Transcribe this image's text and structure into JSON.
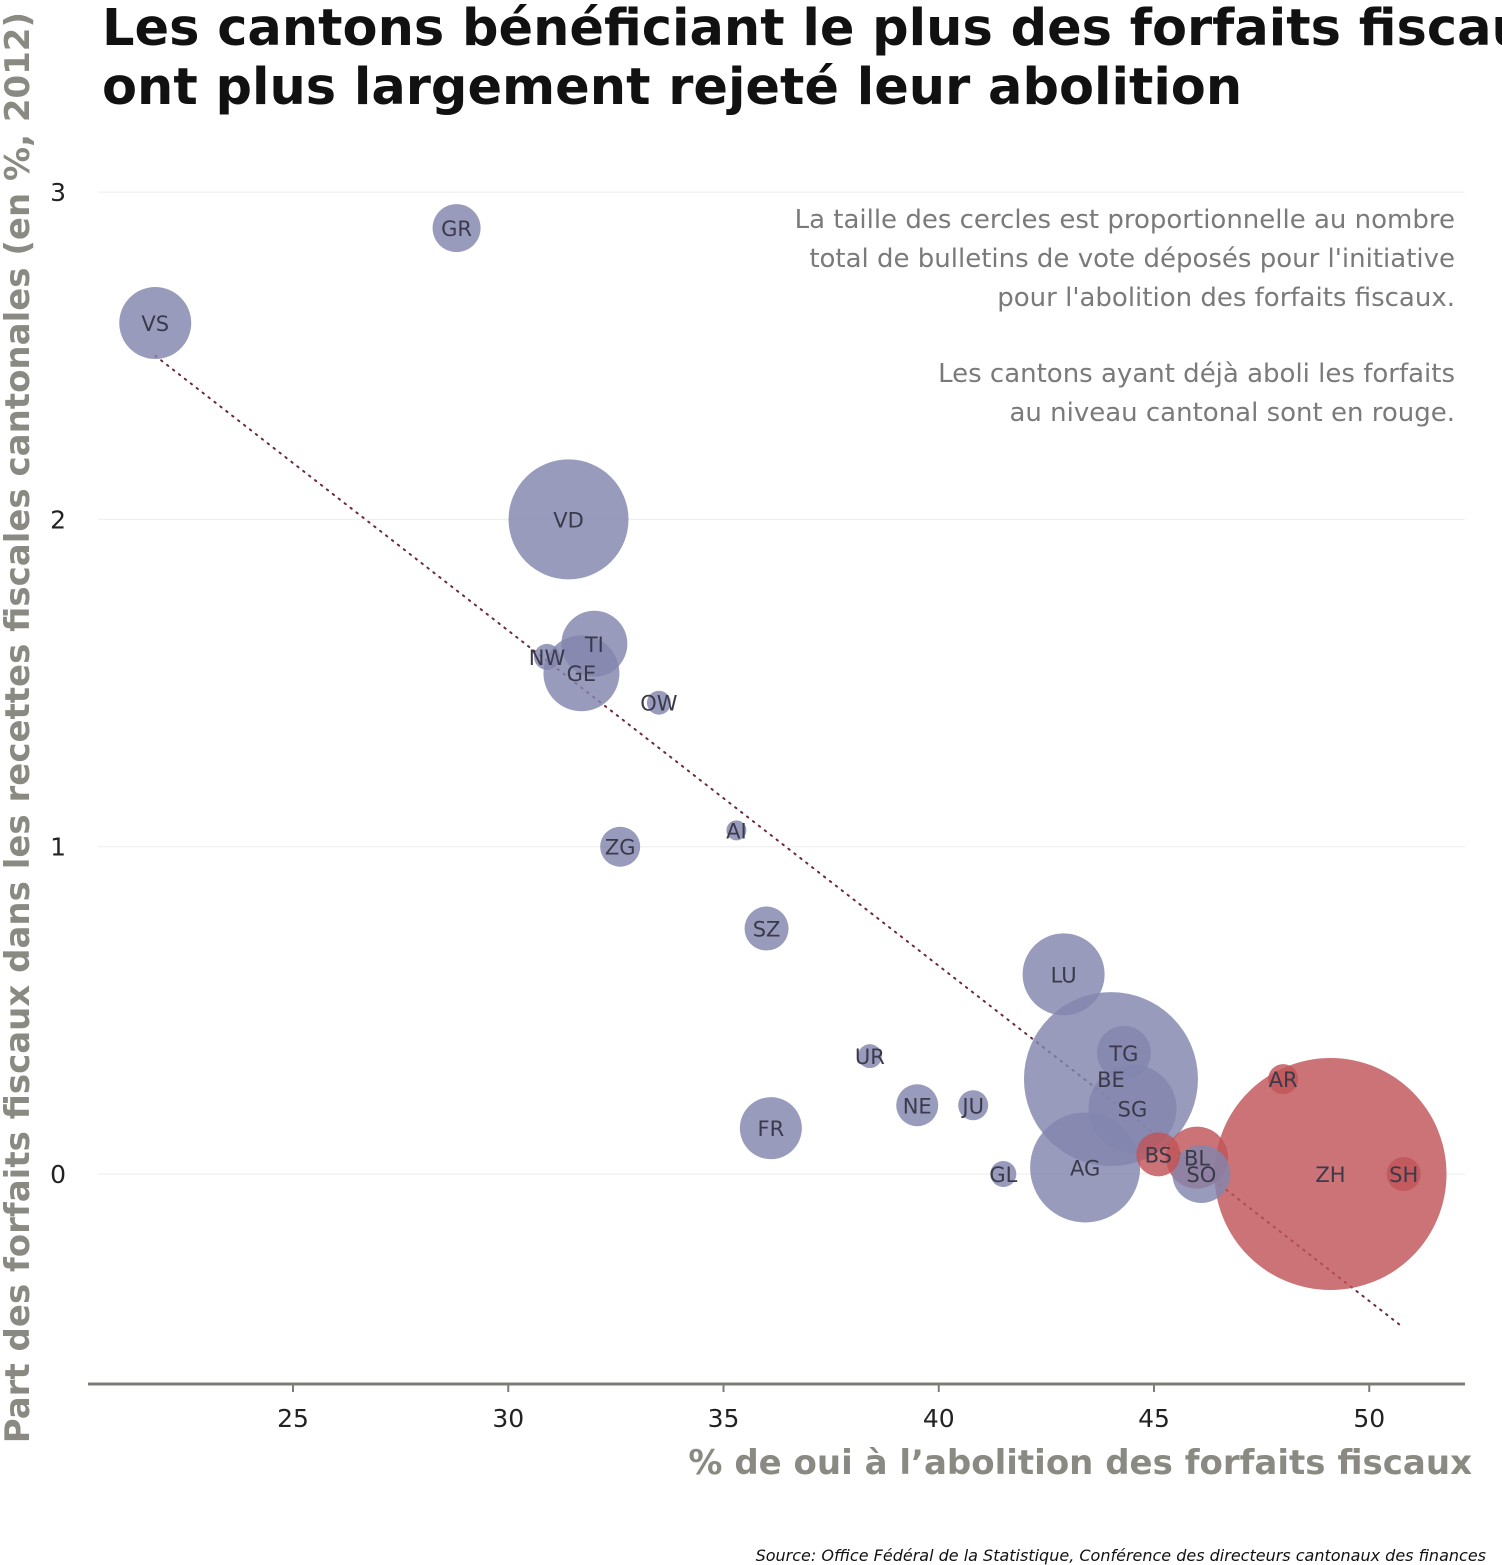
{
  "chart_data": {
    "type": "scatter",
    "title": [
      "Les cantons bénéficiant le plus des forfaits fiscaux",
      "ont plus largement rejeté leur abolition"
    ],
    "annotation": [
      "La taille des cercles est proportionnelle au nombre",
      "total de bulletins de vote déposés pour l'initiative",
      "pour l'abolition des forfaits fiscaux.",
      "",
      "Les cantons ayant déjà aboli les forfaits",
      "au niveau cantonal sont en rouge."
    ],
    "xlabel": "% de oui à l’abolition des forfaits fiscaux",
    "ylabel": "Part des forfaits fiscaux dans les recettes fiscales cantonales (en %, 2012)",
    "source": "Source: Office Fédéral de la Statistique, Conférence des directeurs cantonaux des finances",
    "xlim": [
      20.3,
      52.3
    ],
    "ylim": [
      -0.65,
      3.2
    ],
    "xticks": [
      25,
      30,
      35,
      40,
      45,
      50
    ],
    "yticks": [
      0,
      1,
      2,
      3
    ],
    "grid": true,
    "colors": {
      "kept": "#8385ad",
      "abolished": "#bf5459",
      "trend": "#6b2b35",
      "axis": "#7d7d78",
      "grid": "#eeeeee"
    },
    "trendline": {
      "x": [
        21.8,
        50.8
      ],
      "y": [
        2.5,
        -0.47
      ]
    },
    "points": [
      {
        "label": "GR",
        "x": 28.8,
        "y": 2.89,
        "size": 24,
        "abolished": false
      },
      {
        "label": "VS",
        "x": 21.8,
        "y": 2.6,
        "size": 36,
        "abolished": false
      },
      {
        "label": "VD",
        "x": 31.4,
        "y": 2.0,
        "size": 60,
        "abolished": false
      },
      {
        "label": "TI",
        "x": 32.0,
        "y": 1.62,
        "size": 33,
        "abolished": false
      },
      {
        "label": "NW",
        "x": 30.9,
        "y": 1.58,
        "size": 13,
        "abolished": false
      },
      {
        "label": "GE",
        "x": 31.7,
        "y": 1.53,
        "size": 38,
        "abolished": false
      },
      {
        "label": "OW",
        "x": 33.5,
        "y": 1.44,
        "size": 12,
        "abolished": false
      },
      {
        "label": "AI",
        "x": 35.3,
        "y": 1.05,
        "size": 10,
        "abolished": false
      },
      {
        "label": "ZG",
        "x": 32.6,
        "y": 1.0,
        "size": 20,
        "abolished": false
      },
      {
        "label": "SZ",
        "x": 36.0,
        "y": 0.75,
        "size": 22,
        "abolished": false
      },
      {
        "label": "LU",
        "x": 42.9,
        "y": 0.61,
        "size": 41,
        "abolished": false
      },
      {
        "label": "UR",
        "x": 38.4,
        "y": 0.36,
        "size": 12,
        "abolished": false
      },
      {
        "label": "TG",
        "x": 44.3,
        "y": 0.37,
        "size": 27,
        "abolished": false
      },
      {
        "label": "BE",
        "x": 44.0,
        "y": 0.29,
        "size": 87,
        "abolished": false
      },
      {
        "label": "SG",
        "x": 44.5,
        "y": 0.2,
        "size": 44,
        "abolished": false
      },
      {
        "label": "NE",
        "x": 39.5,
        "y": 0.21,
        "size": 21,
        "abolished": false
      },
      {
        "label": "JU",
        "x": 40.8,
        "y": 0.21,
        "size": 15,
        "abolished": false
      },
      {
        "label": "FR",
        "x": 36.1,
        "y": 0.14,
        "size": 31,
        "abolished": false
      },
      {
        "label": "AG",
        "x": 43.4,
        "y": 0.02,
        "size": 55,
        "abolished": false
      },
      {
        "label": "GL",
        "x": 41.5,
        "y": 0.0,
        "size": 13,
        "abolished": false
      },
      {
        "label": "SO",
        "x": 46.1,
        "y": 0.0,
        "size": 29,
        "abolished": false
      },
      {
        "label": "AR",
        "x": 48.0,
        "y": 0.29,
        "size": 15,
        "abolished": true
      },
      {
        "label": "BS",
        "x": 45.1,
        "y": 0.06,
        "size": 22,
        "abolished": true
      },
      {
        "label": "BL",
        "x": 46.0,
        "y": 0.05,
        "size": 31,
        "abolished": true
      },
      {
        "label": "ZH",
        "x": 49.1,
        "y": 0.0,
        "size": 116,
        "abolished": true
      },
      {
        "label": "SH",
        "x": 50.8,
        "y": 0.0,
        "size": 17,
        "abolished": true
      }
    ]
  }
}
